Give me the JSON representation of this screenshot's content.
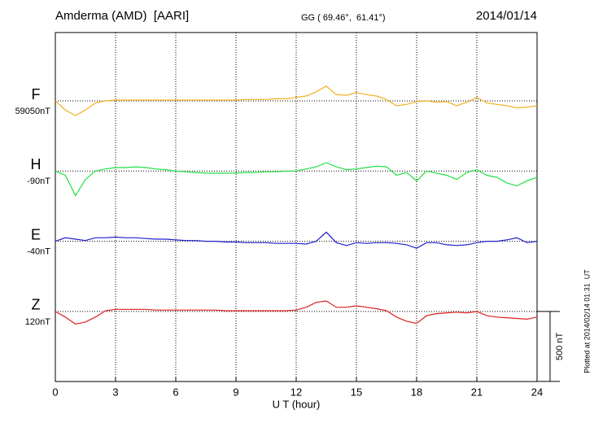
{
  "chart_data": {
    "type": "line",
    "title": "Amderma (AMD)  [AARI]",
    "subtitle": "GG ( 69.46°,  61.41°)",
    "date": "2014/01/14",
    "x_label": "U T (hour)",
    "note": "Plotted at 2014/02/14 01:31  UT",
    "scale_bar": {
      "value": 500,
      "label": "500 nT"
    },
    "xlim": [
      0,
      24
    ],
    "xticks": [
      0,
      3,
      6,
      9,
      12,
      15,
      18,
      21,
      24
    ],
    "grid": true,
    "x": [
      0,
      0.5,
      1,
      1.5,
      2,
      2.5,
      3,
      3.5,
      4,
      4.5,
      5,
      5.5,
      6,
      6.5,
      7,
      7.5,
      8,
      8.5,
      9,
      9.5,
      10,
      10.5,
      11,
      11.5,
      12,
      12.5,
      13,
      13.5,
      14,
      14.5,
      15,
      15.5,
      16,
      16.5,
      17,
      17.5,
      18,
      18.5,
      19,
      19.5,
      20,
      20.5,
      21,
      21.5,
      22,
      22.5,
      23,
      23.5,
      24
    ],
    "series": [
      {
        "name": "F",
        "baseline": "59050nT",
        "color": "#f0b020",
        "values": [
          0,
          -65,
          -105,
          -65,
          -15,
          0,
          5,
          5,
          5,
          5,
          5,
          5,
          5,
          5,
          5,
          5,
          5,
          5,
          5,
          10,
          10,
          10,
          15,
          15,
          25,
          35,
          65,
          105,
          45,
          40,
          60,
          45,
          35,
          10,
          -35,
          -25,
          -5,
          0,
          -10,
          -5,
          -35,
          -10,
          25,
          -15,
          -25,
          -35,
          -50,
          -45,
          -35
        ]
      },
      {
        "name": "H",
        "baseline": "-90nT",
        "color": "#20e040",
        "values": [
          0,
          -30,
          -175,
          -60,
          0,
          15,
          25,
          25,
          30,
          25,
          15,
          10,
          0,
          -5,
          -10,
          -15,
          -15,
          -15,
          -15,
          -10,
          -10,
          -5,
          -5,
          0,
          0,
          15,
          30,
          60,
          30,
          10,
          15,
          25,
          35,
          30,
          -30,
          -10,
          -70,
          0,
          -15,
          -30,
          -60,
          -10,
          10,
          -30,
          -45,
          -85,
          -105,
          -70,
          -45
        ]
      },
      {
        "name": "E",
        "baseline": "-40nT",
        "color": "#2020d0",
        "values": [
          0,
          25,
          15,
          5,
          25,
          25,
          30,
          25,
          25,
          20,
          15,
          15,
          10,
          5,
          5,
          0,
          0,
          -5,
          -5,
          -10,
          -10,
          -10,
          -15,
          -15,
          -15,
          -20,
          0,
          65,
          -10,
          -30,
          -10,
          -15,
          -10,
          -10,
          -15,
          -25,
          -50,
          -10,
          -10,
          -25,
          -30,
          -25,
          -10,
          0,
          0,
          10,
          25,
          -10,
          0
        ]
      },
      {
        "name": "Z",
        "baseline": "120nT",
        "color": "#e02020",
        "values": [
          0,
          -40,
          -90,
          -75,
          -40,
          5,
          15,
          15,
          15,
          15,
          10,
          10,
          10,
          10,
          10,
          10,
          10,
          5,
          5,
          5,
          5,
          5,
          5,
          5,
          10,
          30,
          65,
          75,
          30,
          30,
          40,
          30,
          20,
          5,
          -40,
          -70,
          -85,
          -30,
          -15,
          -10,
          -5,
          -10,
          0,
          -30,
          -40,
          -45,
          -50,
          -55,
          -40
        ]
      }
    ]
  }
}
